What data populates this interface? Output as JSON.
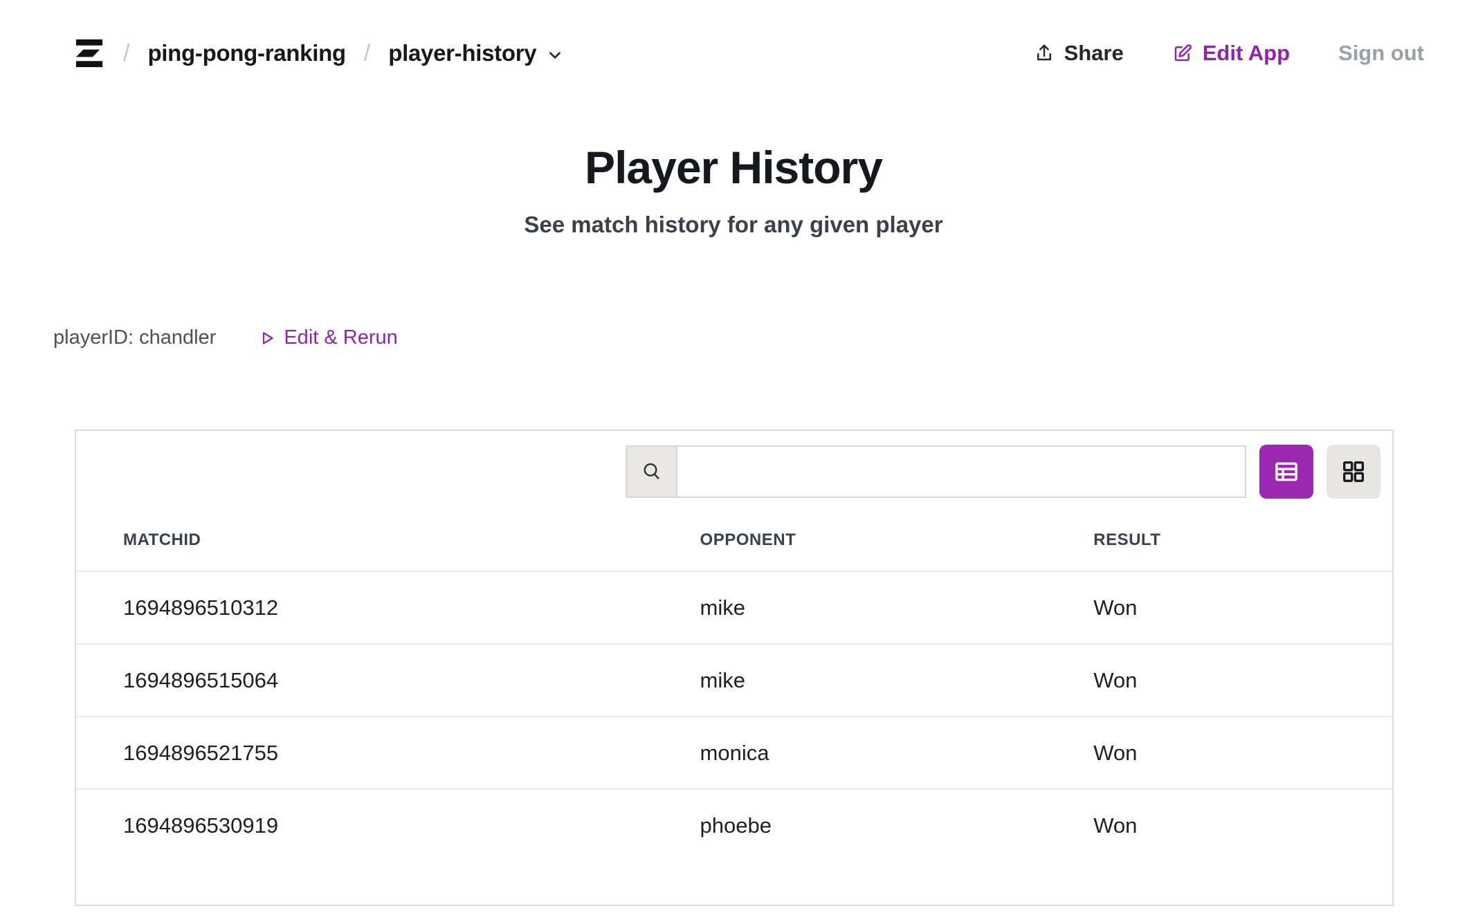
{
  "header": {
    "logo_name": "z-logo",
    "breadcrumb": {
      "separator": "/",
      "app_name": "ping-pong-ranking",
      "page_name": "player-history"
    },
    "share_label": "Share",
    "edit_app_label": "Edit App",
    "sign_out_label": "Sign out"
  },
  "hero": {
    "title": "Player History",
    "subtitle": "See match history for any given player"
  },
  "params": {
    "player_id_label": "playerID: chandler",
    "edit_rerun_label": "Edit & Rerun"
  },
  "table_card": {
    "search": {
      "value": "",
      "placeholder": ""
    },
    "view_toggle": {
      "active_view": "table",
      "options": [
        "table-view",
        "grid-view"
      ]
    },
    "table": {
      "columns": [
        "MATCHID",
        "OPPONENT",
        "RESULT"
      ],
      "rows": [
        [
          "1694896510312",
          "mike",
          "Won"
        ],
        [
          "1694896515064",
          "mike",
          "Won"
        ],
        [
          "1694896521755",
          "monica",
          "Won"
        ],
        [
          "1694896530919",
          "phoebe",
          "Won"
        ]
      ]
    }
  },
  "colors": {
    "accent_purple": "#9c27b0",
    "link_purple": "#8e24aa",
    "muted_gray": "#9aa0a6"
  }
}
